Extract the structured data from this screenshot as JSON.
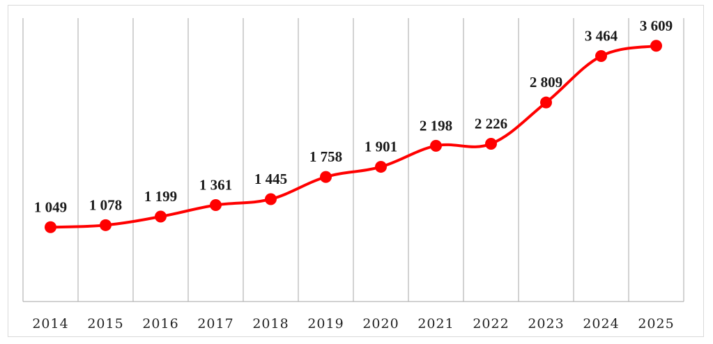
{
  "chart_data": {
    "type": "line",
    "categories": [
      "2014",
      "2015",
      "2016",
      "2017",
      "2018",
      "2019",
      "2020",
      "2021",
      "2022",
      "2023",
      "2024",
      "2025"
    ],
    "values": [
      1049,
      1078,
      1199,
      1361,
      1445,
      1758,
      1901,
      2198,
      2226,
      2809,
      3464,
      3609
    ],
    "data_labels": [
      "1 049",
      "1 078",
      "1 199",
      "1 361",
      "1 445",
      "1 758",
      "1 901",
      "2 198",
      "2 226",
      "2 809",
      "3 464",
      "3 609"
    ],
    "title": "",
    "xlabel": "",
    "ylabel": "",
    "ylim": [
      0,
      4000
    ],
    "grid": "vertical",
    "legend": "none",
    "line_color": "#ff0000",
    "grid_color": "#a6a6a6"
  }
}
